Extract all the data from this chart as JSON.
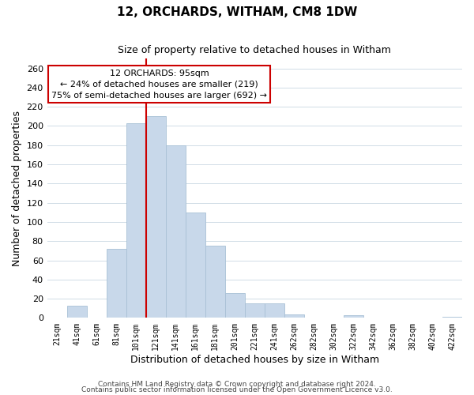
{
  "title": "12, ORCHARDS, WITHAM, CM8 1DW",
  "subtitle": "Size of property relative to detached houses in Witham",
  "xlabel": "Distribution of detached houses by size in Witham",
  "ylabel": "Number of detached properties",
  "bar_color": "#c8d8ea",
  "bar_edge_color": "#a8c0d6",
  "categories": [
    "21sqm",
    "41sqm",
    "61sqm",
    "81sqm",
    "101sqm",
    "121sqm",
    "141sqm",
    "161sqm",
    "181sqm",
    "201sqm",
    "221sqm",
    "241sqm",
    "262sqm",
    "282sqm",
    "302sqm",
    "322sqm",
    "342sqm",
    "362sqm",
    "382sqm",
    "402sqm",
    "422sqm"
  ],
  "values": [
    0,
    13,
    0,
    72,
    203,
    210,
    180,
    110,
    75,
    26,
    15,
    15,
    4,
    0,
    0,
    3,
    0,
    0,
    0,
    0,
    1
  ],
  "vline_color": "#cc0000",
  "annotation_title": "12 ORCHARDS: 95sqm",
  "annotation_line1": "← 24% of detached houses are smaller (219)",
  "annotation_line2": "75% of semi-detached houses are larger (692) →",
  "annotation_box_color": "#ffffff",
  "annotation_box_edge": "#cc0000",
  "ylim": [
    0,
    270
  ],
  "yticks": [
    0,
    20,
    40,
    60,
    80,
    100,
    120,
    140,
    160,
    180,
    200,
    220,
    240,
    260
  ],
  "footer1": "Contains HM Land Registry data © Crown copyright and database right 2024.",
  "footer2": "Contains public sector information licensed under the Open Government Licence v3.0.",
  "background_color": "#ffffff",
  "grid_color": "#d0dce6"
}
